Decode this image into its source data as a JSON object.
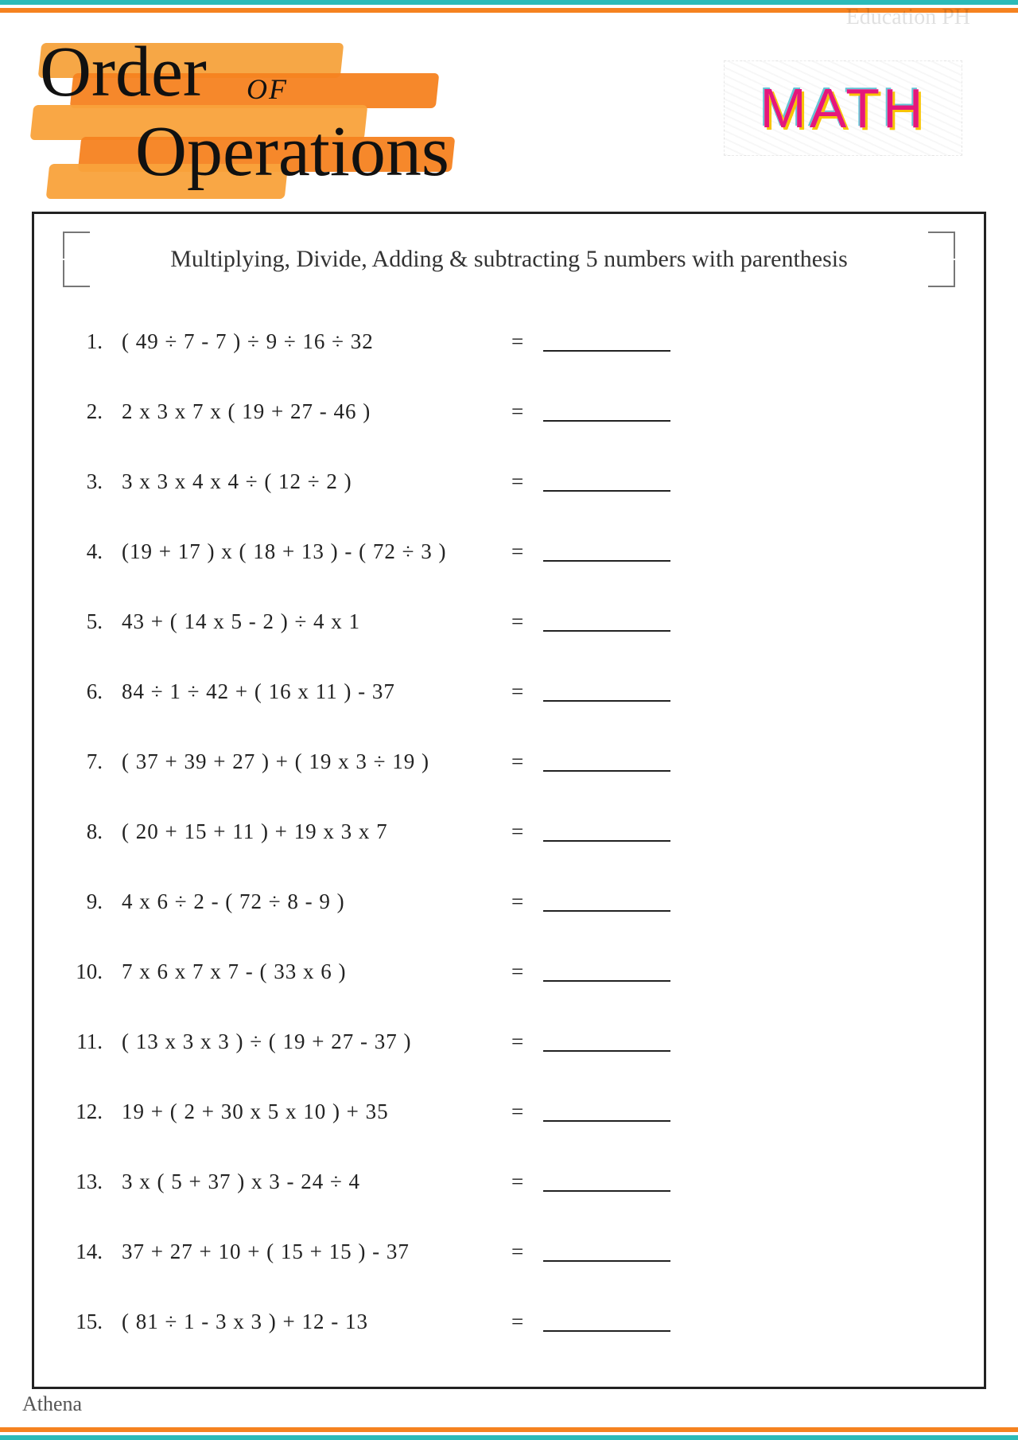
{
  "colors": {
    "teal": "#2bbbb8",
    "orange": "#f58220",
    "orange_light": "#f9a23b",
    "magenta": "#e5177b",
    "text": "#222222",
    "border": "#222222"
  },
  "header": {
    "title_line1": "Order",
    "title_of": "OF",
    "title_line2": "Operations",
    "math_badge": "MATH",
    "watermark": "Education PH"
  },
  "worksheet": {
    "instruction": "Multiplying, Divide, Adding & subtracting 5 numbers with parenthesis",
    "equals_symbol": "=",
    "problems": [
      {
        "n": "1.",
        "expr": "( 49 ÷ 7 - 7 ) ÷ 9 ÷ 16 ÷ 32"
      },
      {
        "n": "2.",
        "expr": "2 x 3 x 7 x ( 19 + 27 - 46 )"
      },
      {
        "n": "3.",
        "expr": "3 x 3 x 4 x 4 ÷ ( 12 ÷ 2 )"
      },
      {
        "n": "4.",
        "expr": "(19 + 17 ) x ( 18 + 13 ) - ( 72 ÷ 3 )"
      },
      {
        "n": "5.",
        "expr": "43 + ( 14 x 5 - 2 ) ÷ 4 x 1"
      },
      {
        "n": "6.",
        "expr": "84 ÷ 1 ÷ 42 + ( 16 x 11 ) - 37"
      },
      {
        "n": "7.",
        "expr": "( 37 + 39 + 27 ) + ( 19 x 3 ÷ 19 )"
      },
      {
        "n": "8.",
        "expr": "( 20 + 15 + 11 ) + 19 x 3 x 7"
      },
      {
        "n": "9.",
        "expr": "4 x 6 ÷ 2 - ( 72 ÷ 8 - 9 )"
      },
      {
        "n": "10.",
        "expr": "7 x 6 x 7 x 7 - ( 33 x 6 )"
      },
      {
        "n": "11.",
        "expr": "( 13 x 3 x 3 ) ÷ ( 19 + 27 - 37 )"
      },
      {
        "n": "12.",
        "expr": "19 + ( 2 + 30 x 5 x 10 ) + 35"
      },
      {
        "n": "13.",
        "expr": "3 x ( 5 + 37 ) x 3 - 24 ÷ 4"
      },
      {
        "n": "14.",
        "expr": "37 + 27 + 10 + ( 15 + 15 ) - 37"
      },
      {
        "n": "15.",
        "expr": "( 81 ÷ 1 - 3 x 3 ) + 12 - 13"
      }
    ]
  },
  "footer": {
    "signature": "Athena"
  }
}
